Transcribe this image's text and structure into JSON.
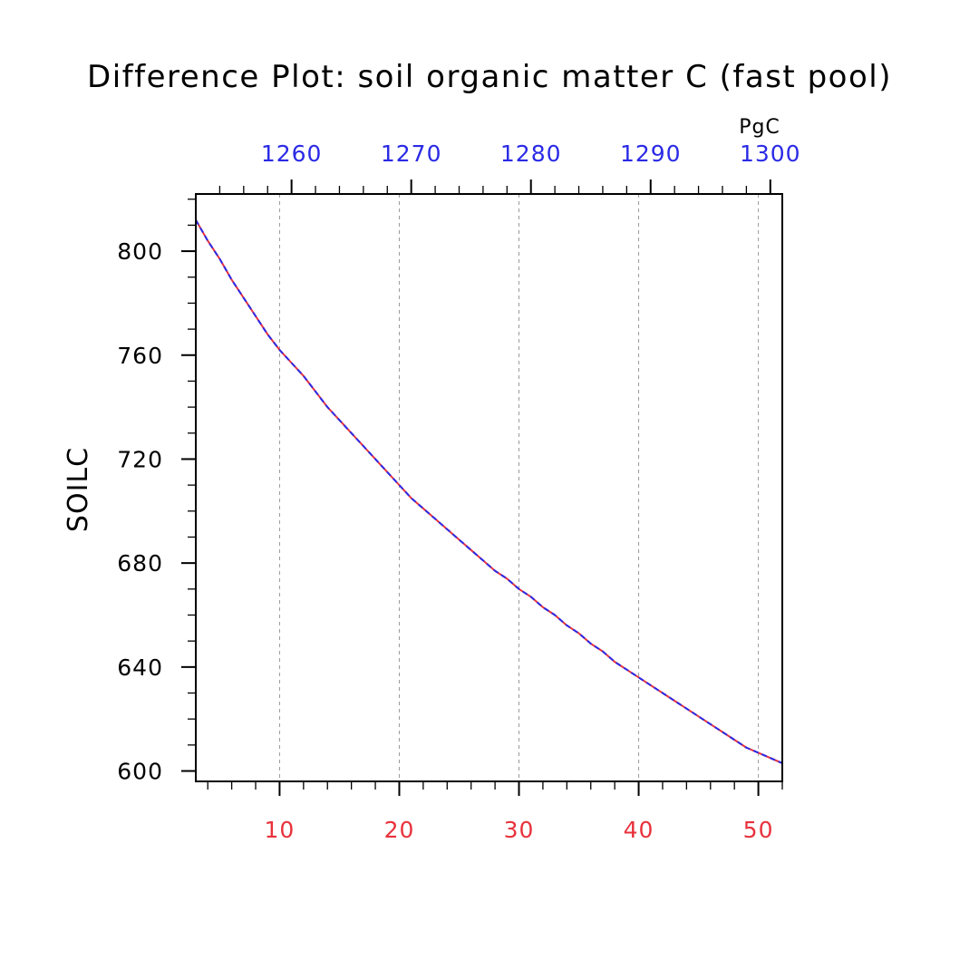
{
  "chart_data": {
    "type": "line",
    "title": "Difference Plot: soil organic matter C (fast pool)",
    "ylabel": "SOILC",
    "top_axis_units": "PgC",
    "xlim": [
      3,
      52
    ],
    "ylim": [
      596,
      822
    ],
    "x_ticks": [
      10,
      20,
      30,
      40,
      50
    ],
    "x_tick_labels": [
      "10",
      "20",
      "30",
      "40",
      "50"
    ],
    "y_ticks": [
      600,
      640,
      680,
      720,
      760,
      800
    ],
    "y_tick_labels": [
      "600",
      "640",
      "680",
      "720",
      "760",
      "800"
    ],
    "top_ticks": [
      1260,
      1270,
      1280,
      1290,
      1300
    ],
    "top_tick_labels": [
      "1260",
      "1270",
      "1280",
      "1290",
      "1300"
    ],
    "top_xlim": [
      1252,
      1301
    ],
    "grid": "vertical dashed",
    "colors": {
      "bottom_axis_labels": "#e8323c",
      "top_axis_labels": "#2a2ae6",
      "series_a": "#e8323c",
      "series_b": "#2a2ae6",
      "grid": "#999999",
      "axes": "#000000"
    },
    "series": [
      {
        "x": [
          3,
          4,
          5,
          6,
          7,
          8,
          9,
          10,
          11,
          12,
          13,
          14,
          15,
          16,
          17,
          18,
          19,
          20,
          21,
          22,
          23,
          24,
          25,
          26,
          27,
          28,
          29,
          30,
          31,
          32,
          33,
          34,
          35,
          36,
          37,
          38,
          39,
          40,
          41,
          42,
          43,
          44,
          45,
          46,
          47,
          48,
          49,
          50,
          51,
          52
        ],
        "values": [
          812,
          804,
          797,
          789,
          782,
          775,
          768,
          762,
          757,
          752,
          746,
          740,
          735,
          730,
          725,
          720,
          715,
          710,
          705,
          701,
          697,
          693,
          689,
          685,
          681,
          677,
          674,
          670,
          667,
          663,
          660,
          656,
          653,
          649,
          646,
          642,
          639,
          636,
          633,
          630,
          627,
          624,
          621,
          618,
          615,
          612,
          609,
          607,
          605,
          603
        ]
      },
      {
        "x": [
          3,
          4,
          5,
          6,
          7,
          8,
          9,
          10,
          11,
          12,
          13,
          14,
          15,
          16,
          17,
          18,
          19,
          20,
          21,
          22,
          23,
          24,
          25,
          26,
          27,
          28,
          29,
          30,
          31,
          32,
          33,
          34,
          35,
          36,
          37,
          38,
          39,
          40,
          41,
          42,
          43,
          44,
          45,
          46,
          47,
          48,
          49,
          50,
          51,
          52
        ],
        "values": [
          812,
          804,
          797,
          789,
          782,
          775,
          768,
          762,
          757,
          752,
          746,
          740,
          735,
          730,
          725,
          720,
          715,
          710,
          705,
          701,
          697,
          693,
          689,
          685,
          681,
          677,
          674,
          670,
          667,
          663,
          660,
          656,
          653,
          649,
          646,
          642,
          639,
          636,
          633,
          630,
          627,
          624,
          621,
          618,
          615,
          612,
          609,
          607,
          605,
          603
        ]
      }
    ]
  }
}
